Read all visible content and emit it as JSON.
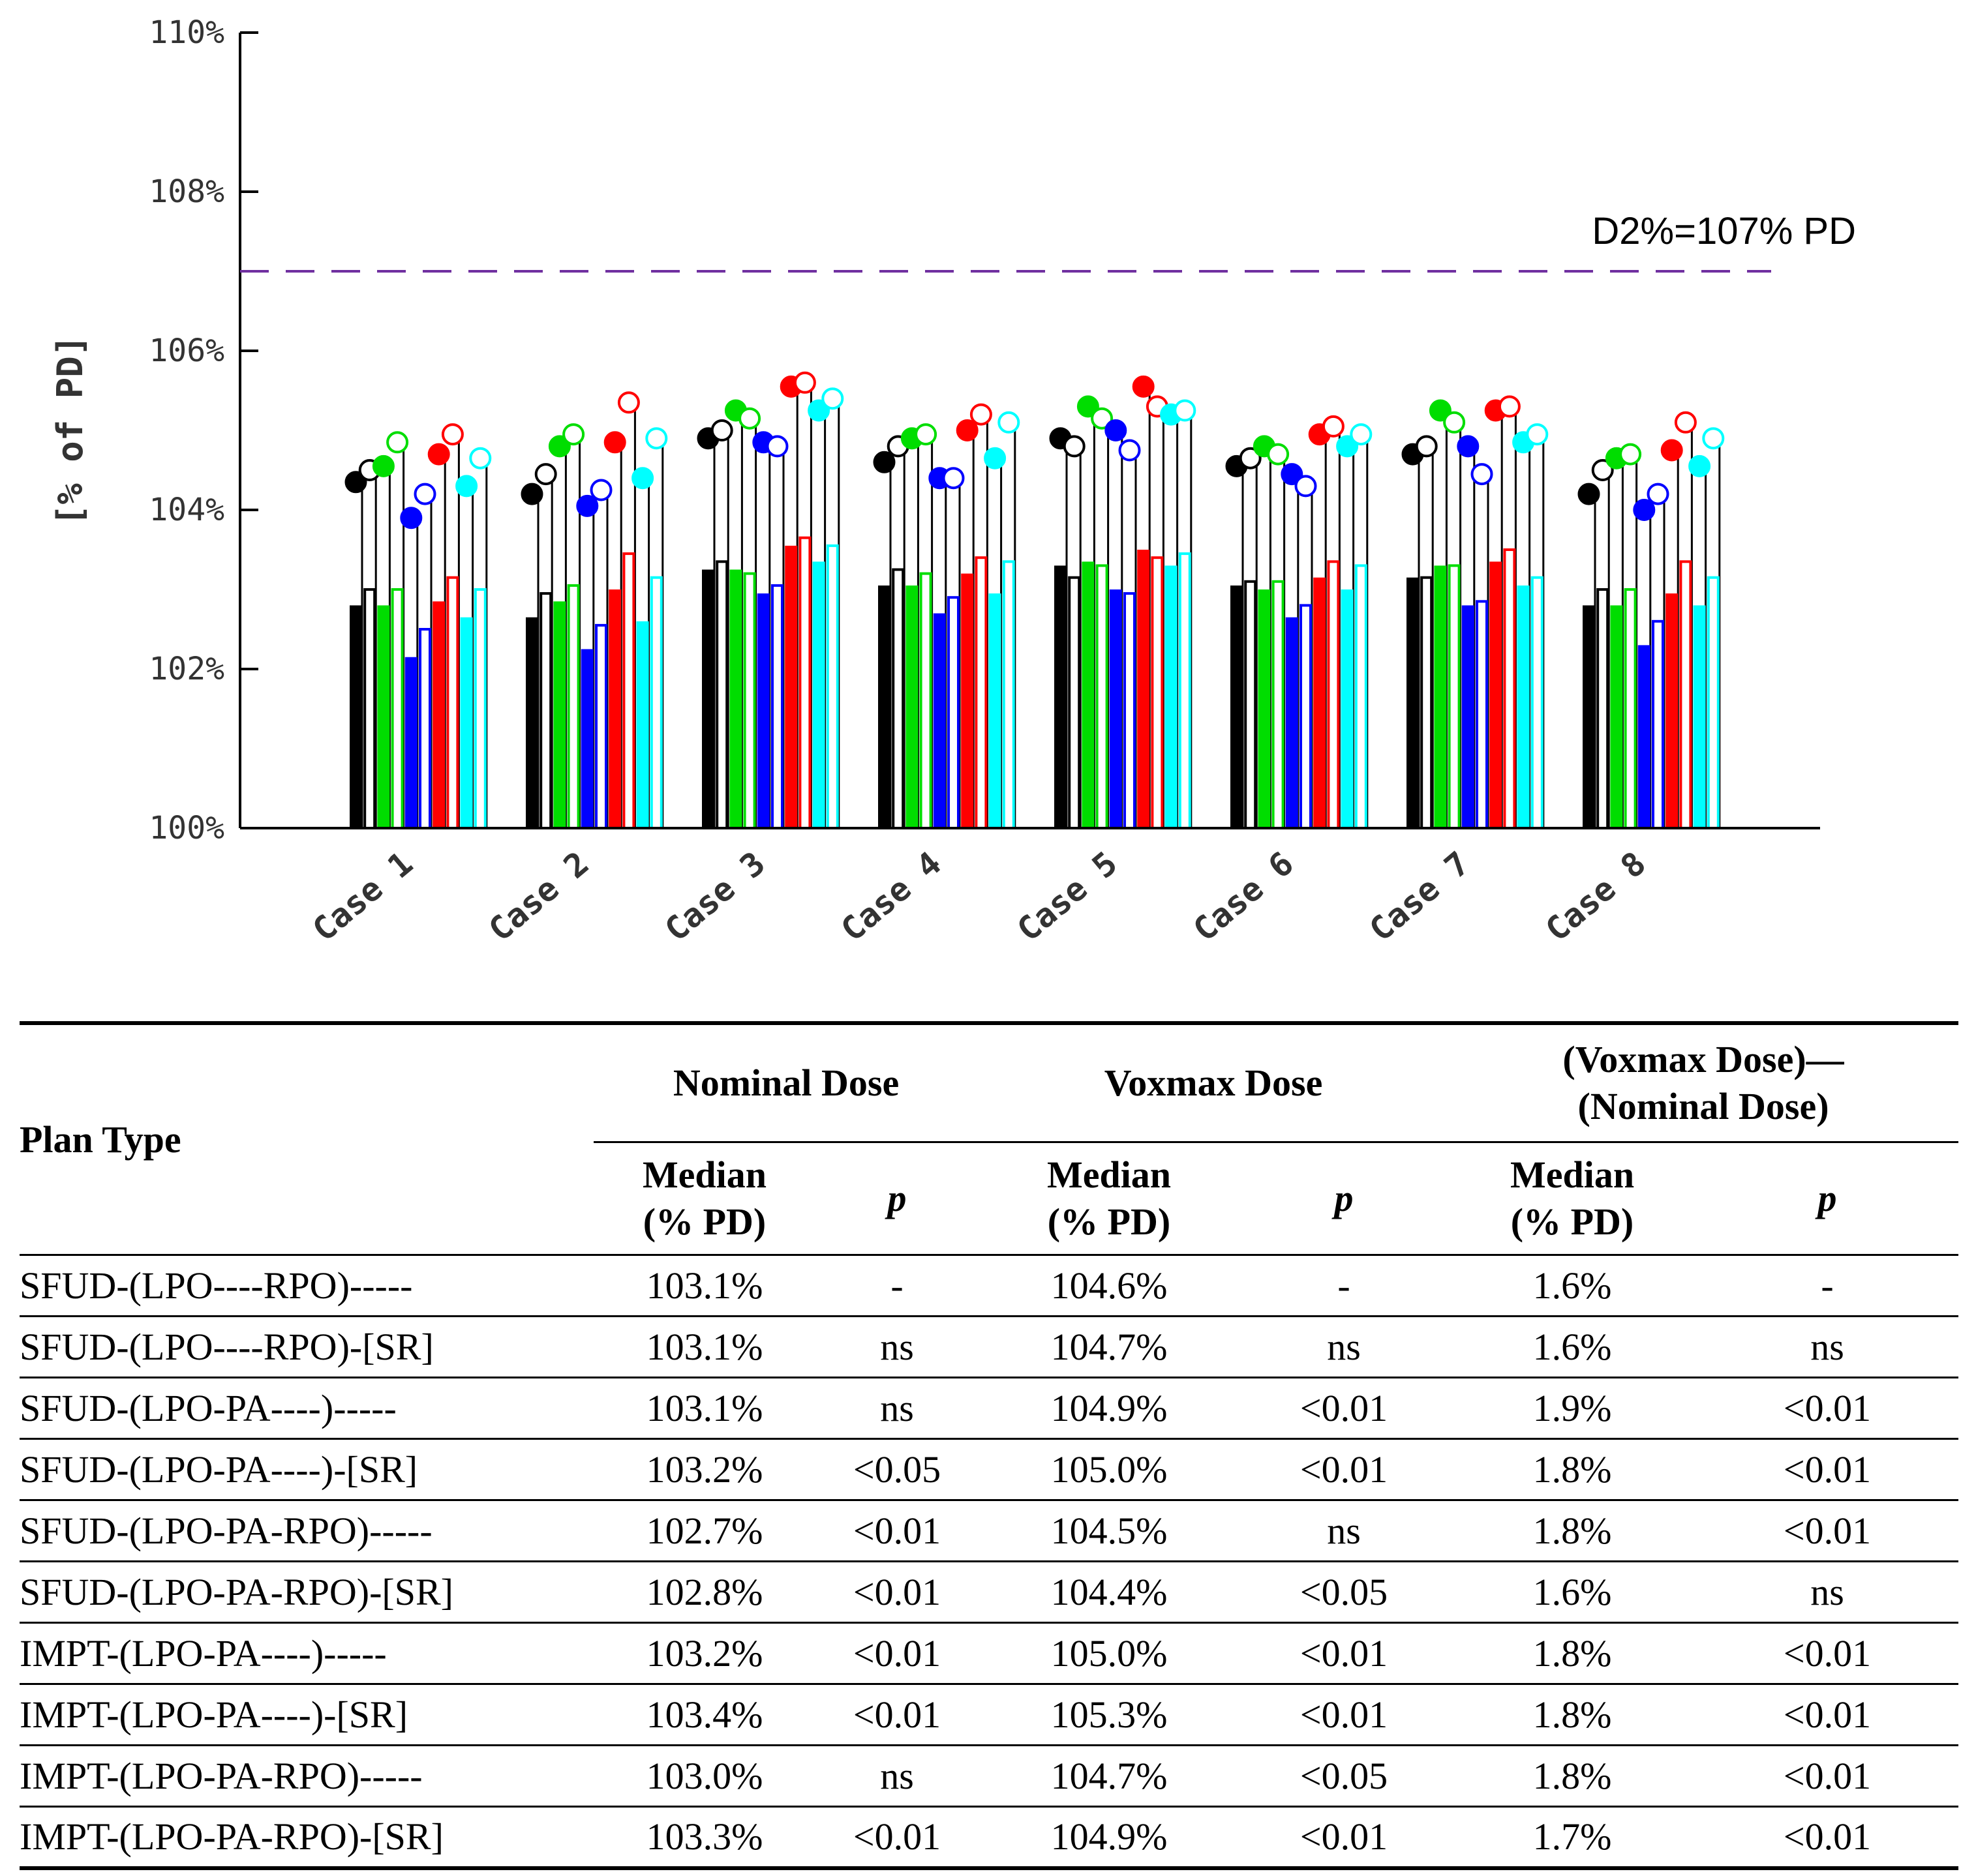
{
  "chart_data": {
    "type": "bar",
    "ylabel": "[% of PD]",
    "ylim": [
      100,
      110
    ],
    "yticks": [
      "100%",
      "102%",
      "104%",
      "106%",
      "108%",
      "110%"
    ],
    "categories": [
      "Case 1",
      "Case 2",
      "Case 3",
      "Case 4",
      "Case 5",
      "Case 6",
      "Case 7",
      "Case 8"
    ],
    "reference_line": {
      "value": 107,
      "label": "D2%=107% PD",
      "color": "#7030a0"
    },
    "series_colors": [
      "#000000",
      "#000000",
      "#00dd00",
      "#00dd00",
      "#0000ff",
      "#0000ff",
      "#ff0000",
      "#ff0000",
      "#00ffff",
      "#00ffff"
    ],
    "series_filled": [
      true,
      false,
      true,
      false,
      true,
      false,
      true,
      false,
      true,
      false
    ],
    "bar_values": [
      [
        102.8,
        103.0,
        102.8,
        103.0,
        102.15,
        102.5,
        102.85,
        103.15,
        102.65,
        103.0
      ],
      [
        102.65,
        102.95,
        102.85,
        103.05,
        102.25,
        102.55,
        103.0,
        103.45,
        102.6,
        103.15
      ],
      [
        103.25,
        103.35,
        103.25,
        103.2,
        102.95,
        103.05,
        103.55,
        103.65,
        103.35,
        103.55
      ],
      [
        103.05,
        103.25,
        103.05,
        103.2,
        102.7,
        102.9,
        103.2,
        103.4,
        102.95,
        103.35
      ],
      [
        103.3,
        103.15,
        103.35,
        103.3,
        103.0,
        102.95,
        103.5,
        103.4,
        103.3,
        103.45
      ],
      [
        103.05,
        103.1,
        103.0,
        103.1,
        102.65,
        102.8,
        103.15,
        103.35,
        103.0,
        103.3
      ],
      [
        103.15,
        103.15,
        103.3,
        103.3,
        102.8,
        102.85,
        103.35,
        103.5,
        103.05,
        103.15
      ],
      [
        102.8,
        103.0,
        102.8,
        103.0,
        102.3,
        102.6,
        102.95,
        103.35,
        102.8,
        103.15
      ]
    ],
    "marker_values": [
      [
        104.35,
        104.5,
        104.55,
        104.85,
        103.9,
        104.2,
        104.7,
        104.95,
        104.3,
        104.65
      ],
      [
        104.2,
        104.45,
        104.8,
        104.95,
        104.05,
        104.25,
        104.85,
        105.35,
        104.4,
        104.9
      ],
      [
        104.9,
        105.0,
        105.25,
        105.15,
        104.85,
        104.8,
        105.55,
        105.6,
        105.25,
        105.4
      ],
      [
        104.6,
        104.8,
        104.9,
        104.95,
        104.4,
        104.4,
        105.0,
        105.2,
        104.65,
        105.1
      ],
      [
        104.9,
        104.8,
        105.3,
        105.15,
        105.0,
        104.75,
        105.55,
        105.3,
        105.2,
        105.25
      ],
      [
        104.55,
        104.65,
        104.8,
        104.7,
        104.45,
        104.3,
        104.95,
        105.05,
        104.8,
        104.95
      ],
      [
        104.7,
        104.8,
        105.25,
        105.1,
        104.8,
        104.45,
        105.25,
        105.3,
        104.85,
        104.95
      ],
      [
        104.2,
        104.5,
        104.65,
        104.7,
        104.0,
        104.2,
        104.75,
        105.1,
        104.55,
        104.9
      ]
    ]
  },
  "table": {
    "plan_type_header": "Plan Type",
    "groups": [
      {
        "line1": "Nominal Dose",
        "line2": ""
      },
      {
        "line1": "Voxmax Dose",
        "line2": ""
      },
      {
        "line1": "(Voxmax Dose)—",
        "line2": "(Nominal Dose)"
      }
    ],
    "median_header_line1": "Median",
    "median_header_line2": "(% PD)",
    "p_header": "p",
    "rows": [
      [
        "SFUD-(LPO----RPO)-----",
        "103.1%",
        "-",
        "104.6%",
        "-",
        "1.6%",
        "-"
      ],
      [
        "SFUD-(LPO----RPO)-[SR]",
        "103.1%",
        "ns",
        "104.7%",
        "ns",
        "1.6%",
        "ns"
      ],
      [
        "SFUD-(LPO-PA----)-----",
        "103.1%",
        "ns",
        "104.9%",
        "<0.01",
        "1.9%",
        "<0.01"
      ],
      [
        "SFUD-(LPO-PA----)-[SR]",
        "103.2%",
        "<0.05",
        "105.0%",
        "<0.01",
        "1.8%",
        "<0.01"
      ],
      [
        "SFUD-(LPO-PA-RPO)-----",
        "102.7%",
        "<0.01",
        "104.5%",
        "ns",
        "1.8%",
        "<0.01"
      ],
      [
        "SFUD-(LPO-PA-RPO)-[SR]",
        "102.8%",
        "<0.01",
        "104.4%",
        "<0.05",
        "1.6%",
        "ns"
      ],
      [
        "IMPT-(LPO-PA----)-----",
        "103.2%",
        "<0.01",
        "105.0%",
        "<0.01",
        "1.8%",
        "<0.01"
      ],
      [
        "IMPT-(LPO-PA----)-[SR]",
        "103.4%",
        "<0.01",
        "105.3%",
        "<0.01",
        "1.8%",
        "<0.01"
      ],
      [
        "IMPT-(LPO-PA-RPO)-----",
        "103.0%",
        "ns",
        "104.7%",
        "<0.05",
        "1.8%",
        "<0.01"
      ],
      [
        "IMPT-(LPO-PA-RPO)-[SR]",
        "103.3%",
        "<0.01",
        "104.9%",
        "<0.01",
        "1.7%",
        "<0.01"
      ]
    ]
  }
}
